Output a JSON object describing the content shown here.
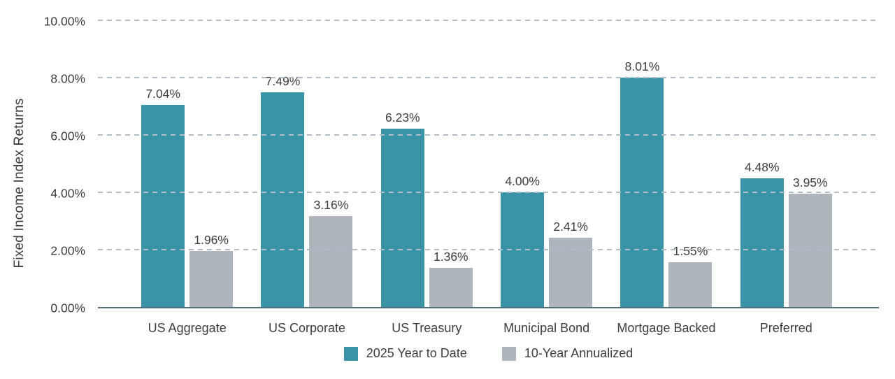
{
  "chart_data": {
    "type": "bar",
    "title": "",
    "ylabel": "Fixed Income Index Returns",
    "xlabel": "",
    "ylim": [
      0,
      10
    ],
    "grid": "horizontal-dashed",
    "legend_position": "bottom-center",
    "y_ticks": [
      {
        "value": 0,
        "label": "0.00%"
      },
      {
        "value": 2,
        "label": "2.00%"
      },
      {
        "value": 4,
        "label": "4.00%"
      },
      {
        "value": 6,
        "label": "6.00%"
      },
      {
        "value": 8,
        "label": "8.00%"
      },
      {
        "value": 10,
        "label": "10.00%"
      }
    ],
    "categories": [
      "US Aggregate",
      "US Corporate",
      "US Treasury",
      "Municipal Bond",
      "Mortgage Backed",
      "Preferred"
    ],
    "series": [
      {
        "name": "2025 Year to Date",
        "color": "#3894a6",
        "points": [
          {
            "value": 7.04,
            "label": "7.04%"
          },
          {
            "value": 7.49,
            "label": "7.49%"
          },
          {
            "value": 6.23,
            "label": "6.23%"
          },
          {
            "value": 4.0,
            "label": "4.00%"
          },
          {
            "value": 8.01,
            "label": "8.01%"
          },
          {
            "value": 4.48,
            "label": "4.48%"
          }
        ]
      },
      {
        "name": "10-Year Annualized",
        "color": "#aeb5bd",
        "points": [
          {
            "value": 1.96,
            "label": "1.96%"
          },
          {
            "value": 3.16,
            "label": "3.16%"
          },
          {
            "value": 1.36,
            "label": "1.36%"
          },
          {
            "value": 2.41,
            "label": "2.41%"
          },
          {
            "value": 1.55,
            "label": "1.55%"
          },
          {
            "value": 3.95,
            "label": "3.95%"
          }
        ]
      }
    ],
    "colors": {
      "background": "#ffffff",
      "gridline": "#b3bdc8",
      "axis_line": "#4e707e",
      "text": "#3d3d3d"
    }
  }
}
